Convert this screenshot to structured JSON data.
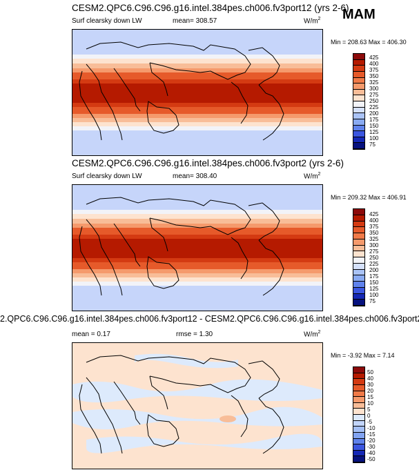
{
  "season": "MAM",
  "panels": [
    {
      "title": "CESM2.QPC6.C96.C96.g16.intel.384pes.ch006.fv3port12 (yrs 2-6)",
      "field": "Surf clearsky down LW",
      "mean": "mean= 308.57",
      "units": "W/m",
      "units_sup": "2",
      "minmax": "Min = 208.63 Max = 406.30",
      "levels": [
        "425",
        "400",
        "375",
        "350",
        "325",
        "300",
        "275",
        "250",
        "225",
        "200",
        "175",
        "150",
        "125",
        "100",
        "75"
      ]
    },
    {
      "title": "CESM2.QPC6.C96.C96.g16.intel.384pes.ch006.fv3port2 (yrs 2-6)",
      "field": "Surf clearsky down LW",
      "mean": "mean= 308.40",
      "units": "W/m",
      "units_sup": "2",
      "minmax": "Min = 209.32 Max = 406.91",
      "levels": [
        "425",
        "400",
        "375",
        "350",
        "325",
        "300",
        "275",
        "250",
        "225",
        "200",
        "175",
        "150",
        "125",
        "100",
        "75"
      ]
    },
    {
      "title": "2.QPC6.C96.C96.g16.intel.384pes.ch006.fv3port12 - CESM2.QPC6.C96.C96.g16.intel.384pes.ch006.fv3port2",
      "mean": "mean =  0.17",
      "rmse": "rmse =  1.30",
      "units": "W/m",
      "units_sup": "2",
      "minmax": "Min =  -3.92 Max =  7.14",
      "levels": [
        "50",
        "40",
        "30",
        "20",
        "15",
        "10",
        "5",
        "0",
        "-5",
        "-10",
        "-15",
        "-20",
        "-30",
        "-40",
        "-50"
      ]
    }
  ],
  "colors": {
    "scale_top_to_bottom": [
      "#8c0a0a",
      "#b51a00",
      "#d43a12",
      "#e65a2a",
      "#f07a48",
      "#f59a6c",
      "#f8bd98",
      "#fde3cf",
      "#f2f3f8",
      "#d5e1fb",
      "#aac3f6",
      "#89aaf2",
      "#5f82ec",
      "#3b56e0",
      "#1528b6",
      "#07127e"
    ],
    "diff_top_to_bottom": [
      "#8c0a0a",
      "#b51a00",
      "#d43a12",
      "#e65a2a",
      "#f07a48",
      "#f59a6c",
      "#f8bd98",
      "#fde3cf",
      "#ddeafc",
      "#c2d5fb",
      "#a4bff6",
      "#82a4f2",
      "#5f82ec",
      "#3b56e0",
      "#1528b6",
      "#07127e"
    ]
  }
}
